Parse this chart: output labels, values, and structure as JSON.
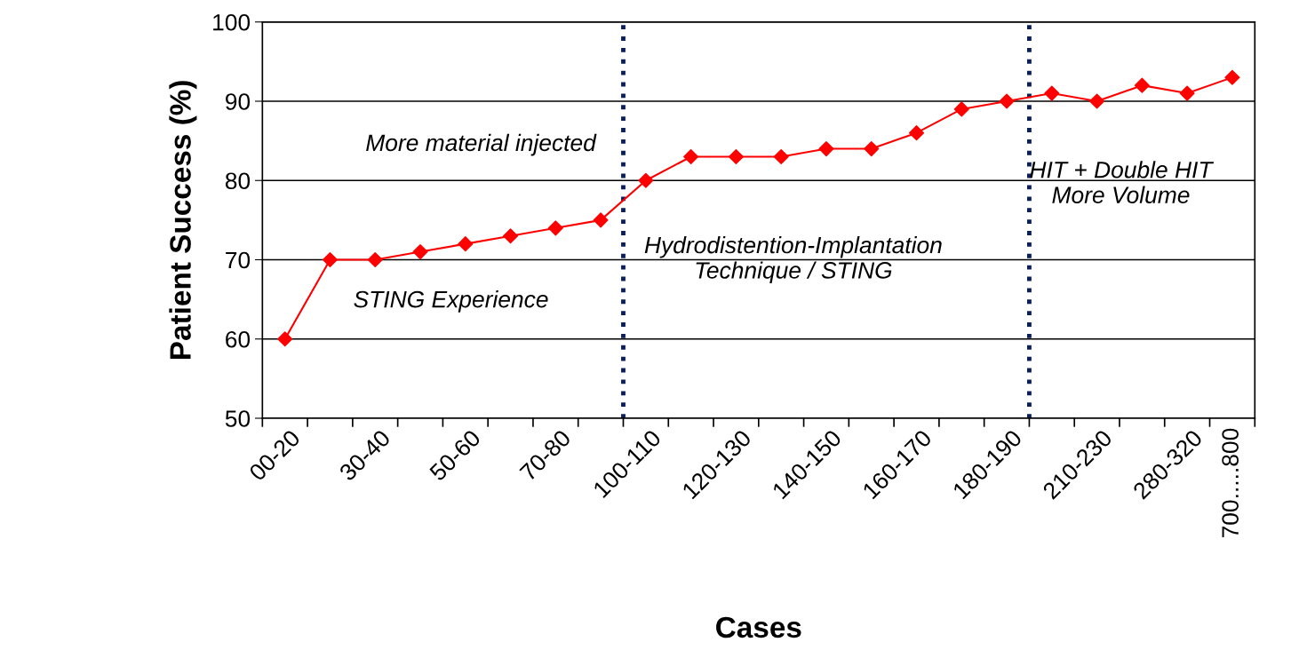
{
  "chart_data": {
    "type": "line",
    "xlabel": "Cases",
    "ylabel": "Patient Success (%)",
    "categories": [
      "00-20",
      null,
      "30-40",
      null,
      "50-60",
      null,
      "70-80",
      null,
      "100-110",
      null,
      "120-130",
      null,
      "140-150",
      null,
      "160-170",
      null,
      "180-190",
      null,
      "210-230",
      null,
      "280-320",
      "700.....800"
    ],
    "series": [
      {
        "color": "#ff0000",
        "values": [
          60,
          70,
          70,
          71,
          72,
          73,
          74,
          75,
          80,
          83,
          83,
          83,
          84,
          84,
          86,
          89,
          90,
          91,
          90,
          92,
          91,
          93
        ]
      }
    ],
    "ylim": [
      50,
      100
    ],
    "yticks": [
      50,
      60,
      70,
      80,
      90,
      100
    ],
    "grid": "y",
    "marker": "diamond",
    "line_style": "solid",
    "legend": false,
    "annotations": [
      "More material injected",
      "STING Experience",
      "Hydrodistention-Implantation\nTechnique / STING",
      "HIT + Double HIT\nMore Volume"
    ]
  }
}
